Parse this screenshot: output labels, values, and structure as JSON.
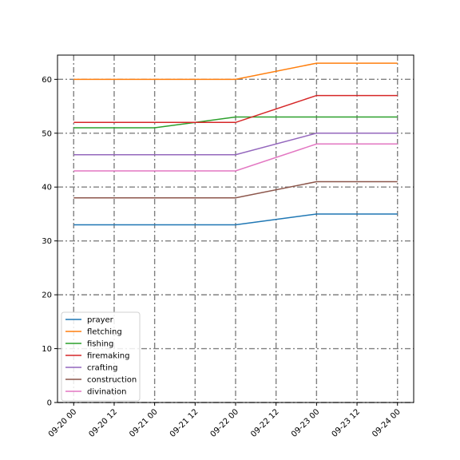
{
  "chart_data": {
    "type": "line",
    "title": "",
    "xlabel": "",
    "ylabel": "",
    "x": [
      "09-20 00",
      "09-21 00",
      "09-22 00",
      "09-23 00",
      "09-24 00"
    ],
    "x_hours": [
      0,
      24,
      48,
      72,
      96
    ],
    "xticks": [
      "09-20 00",
      "09-20 12",
      "09-21 00",
      "09-21 12",
      "09-22 00",
      "09-22 12",
      "09-23 00",
      "09-23 12",
      "09-24 00"
    ],
    "yticks": [
      "0",
      "10",
      "20",
      "30",
      "40",
      "50",
      "60"
    ],
    "ylim": [
      0,
      64.5
    ],
    "grid": true,
    "legend_position": "lower-left",
    "series": [
      {
        "name": "prayer",
        "color": "#1f77b4",
        "values": [
          33,
          33,
          33,
          35,
          35
        ]
      },
      {
        "name": "fletching",
        "color": "#ff7f0e",
        "values": [
          60,
          60,
          60,
          63,
          63
        ]
      },
      {
        "name": "fishing",
        "color": "#2ca02c",
        "values": [
          51,
          51,
          53,
          53,
          53
        ]
      },
      {
        "name": "firemaking",
        "color": "#d62728",
        "values": [
          52,
          52,
          52,
          57,
          57
        ]
      },
      {
        "name": "crafting",
        "color": "#9467bd",
        "values": [
          46,
          46,
          46,
          50,
          50
        ]
      },
      {
        "name": "construction",
        "color": "#8c564b",
        "values": [
          38,
          38,
          38,
          41,
          41
        ]
      },
      {
        "name": "divination",
        "color": "#e377c2",
        "values": [
          43,
          43,
          43,
          48,
          48
        ]
      }
    ]
  }
}
